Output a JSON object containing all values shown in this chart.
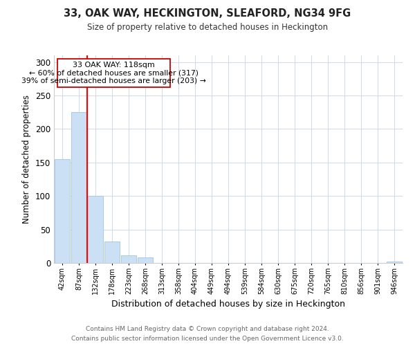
{
  "title": "33, OAK WAY, HECKINGTON, SLEAFORD, NG34 9FG",
  "subtitle": "Size of property relative to detached houses in Heckington",
  "xlabel": "Distribution of detached houses by size in Heckington",
  "ylabel": "Number of detached properties",
  "bar_color": "#cce0f5",
  "bar_edge_color": "#aac8e8",
  "vline_color": "red",
  "bin_labels": [
    "42sqm",
    "87sqm",
    "132sqm",
    "178sqm",
    "223sqm",
    "268sqm",
    "313sqm",
    "358sqm",
    "404sqm",
    "449sqm",
    "494sqm",
    "539sqm",
    "584sqm",
    "630sqm",
    "675sqm",
    "720sqm",
    "765sqm",
    "810sqm",
    "856sqm",
    "901sqm",
    "946sqm"
  ],
  "bar_values": [
    155,
    225,
    100,
    32,
    11,
    8,
    0,
    0,
    0,
    0,
    0,
    0,
    0,
    0,
    0,
    0,
    0,
    0,
    0,
    0,
    2
  ],
  "ylim": [
    0,
    310
  ],
  "yticks": [
    0,
    50,
    100,
    150,
    200,
    250,
    300
  ],
  "annotation_line1": "33 OAK WAY: 118sqm",
  "annotation_line2": "← 60% of detached houses are smaller (317)",
  "annotation_line3": "39% of semi-detached houses are larger (203) →",
  "footer_line1": "Contains HM Land Registry data © Crown copyright and database right 2024.",
  "footer_line2": "Contains public sector information licensed under the Open Government Licence v3.0.",
  "background_color": "#ffffff",
  "grid_color": "#d0dce8"
}
